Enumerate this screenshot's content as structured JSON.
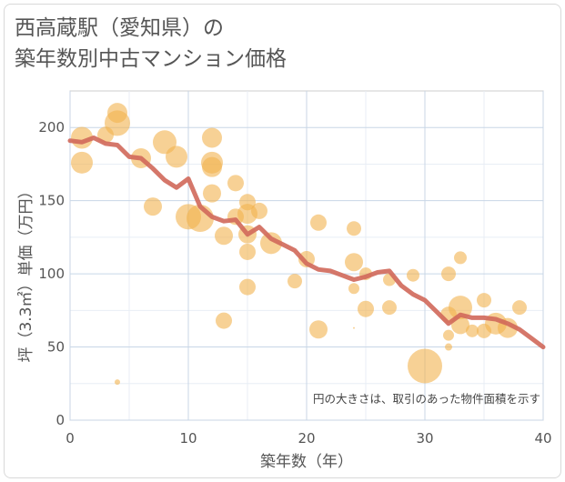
{
  "title_lines": [
    "西高蔵駅（愛知県）の",
    "築年数別中古マンション価格"
  ],
  "chart_data": {
    "type": "scatter",
    "title": "西高蔵駅（愛知県）の築年数別中古マンション価格",
    "xlabel": "築年数（年）",
    "ylabel": "坪（3.3㎡）単価（万円）",
    "xlim": [
      0,
      40
    ],
    "ylim": [
      0,
      225
    ],
    "xticks": [
      0,
      10,
      20,
      30,
      40
    ],
    "yticks": [
      0,
      50,
      100,
      150,
      200
    ],
    "grid": true,
    "note": "円の大きさは、取引のあった物件面積を示す",
    "colors": {
      "bubble": "#f2b24f",
      "line": "#d0685a"
    },
    "bubbles": [
      {
        "x": 1,
        "y": 193,
        "size": 12
      },
      {
        "x": 1,
        "y": 176,
        "size": 12
      },
      {
        "x": 3,
        "y": 195,
        "size": 9
      },
      {
        "x": 4,
        "y": 210,
        "size": 11
      },
      {
        "x": 4,
        "y": 203,
        "size": 14
      },
      {
        "x": 4,
        "y": 26,
        "size": 3
      },
      {
        "x": 6,
        "y": 179,
        "size": 11
      },
      {
        "x": 7,
        "y": 146,
        "size": 10
      },
      {
        "x": 8,
        "y": 190,
        "size": 13
      },
      {
        "x": 9,
        "y": 180,
        "size": 12
      },
      {
        "x": 10,
        "y": 139,
        "size": 14
      },
      {
        "x": 11,
        "y": 138,
        "size": 15
      },
      {
        "x": 12,
        "y": 193,
        "size": 11
      },
      {
        "x": 12,
        "y": 176,
        "size": 12
      },
      {
        "x": 12,
        "y": 173,
        "size": 11
      },
      {
        "x": 12,
        "y": 155,
        "size": 10
      },
      {
        "x": 13,
        "y": 126,
        "size": 10
      },
      {
        "x": 13,
        "y": 68,
        "size": 9
      },
      {
        "x": 14,
        "y": 162,
        "size": 9
      },
      {
        "x": 14,
        "y": 139,
        "size": 9
      },
      {
        "x": 15,
        "y": 149,
        "size": 9
      },
      {
        "x": 15,
        "y": 141,
        "size": 11
      },
      {
        "x": 15,
        "y": 127,
        "size": 10
      },
      {
        "x": 15,
        "y": 115,
        "size": 9
      },
      {
        "x": 15,
        "y": 91,
        "size": 9
      },
      {
        "x": 16,
        "y": 143,
        "size": 9
      },
      {
        "x": 17,
        "y": 121,
        "size": 12
      },
      {
        "x": 19,
        "y": 95,
        "size": 8
      },
      {
        "x": 20,
        "y": 110,
        "size": 9
      },
      {
        "x": 21,
        "y": 135,
        "size": 9
      },
      {
        "x": 21,
        "y": 62,
        "size": 10
      },
      {
        "x": 24,
        "y": 131,
        "size": 8
      },
      {
        "x": 24,
        "y": 108,
        "size": 10
      },
      {
        "x": 24,
        "y": 90,
        "size": 6
      },
      {
        "x": 24,
        "y": 63,
        "size": 1
      },
      {
        "x": 25,
        "y": 100,
        "size": 7
      },
      {
        "x": 25,
        "y": 76,
        "size": 9
      },
      {
        "x": 27,
        "y": 96,
        "size": 7
      },
      {
        "x": 27,
        "y": 77,
        "size": 8
      },
      {
        "x": 29,
        "y": 99,
        "size": 7
      },
      {
        "x": 30,
        "y": 37,
        "size": 19
      },
      {
        "x": 32,
        "y": 100,
        "size": 8
      },
      {
        "x": 32,
        "y": 72,
        "size": 9
      },
      {
        "x": 32,
        "y": 58,
        "size": 6
      },
      {
        "x": 32,
        "y": 50,
        "size": 4
      },
      {
        "x": 33,
        "y": 111,
        "size": 7
      },
      {
        "x": 33,
        "y": 77,
        "size": 13
      },
      {
        "x": 33,
        "y": 65,
        "size": 10
      },
      {
        "x": 34,
        "y": 61,
        "size": 7
      },
      {
        "x": 35,
        "y": 82,
        "size": 8
      },
      {
        "x": 35,
        "y": 61,
        "size": 8
      },
      {
        "x": 36,
        "y": 66,
        "size": 12
      },
      {
        "x": 37,
        "y": 63,
        "size": 11
      },
      {
        "x": 38,
        "y": 77,
        "size": 8
      }
    ],
    "trend": {
      "x": [
        0,
        1,
        2,
        3,
        4,
        5,
        6,
        7,
        8,
        9,
        10,
        11,
        12,
        13,
        14,
        15,
        16,
        17,
        18,
        19,
        20,
        21,
        22,
        23,
        24,
        25,
        26,
        27,
        28,
        29,
        30,
        31,
        32,
        33,
        34,
        35,
        36,
        37,
        38,
        39,
        40
      ],
      "y": [
        191,
        190,
        193,
        189,
        188,
        180,
        179,
        172,
        164,
        159,
        165,
        146,
        139,
        136,
        137,
        127,
        132,
        124,
        120,
        116,
        107,
        103,
        102,
        99,
        96,
        98,
        101,
        102,
        92,
        86,
        82,
        74,
        66,
        72,
        70,
        70,
        69,
        66,
        62,
        56,
        50
      ]
    }
  }
}
